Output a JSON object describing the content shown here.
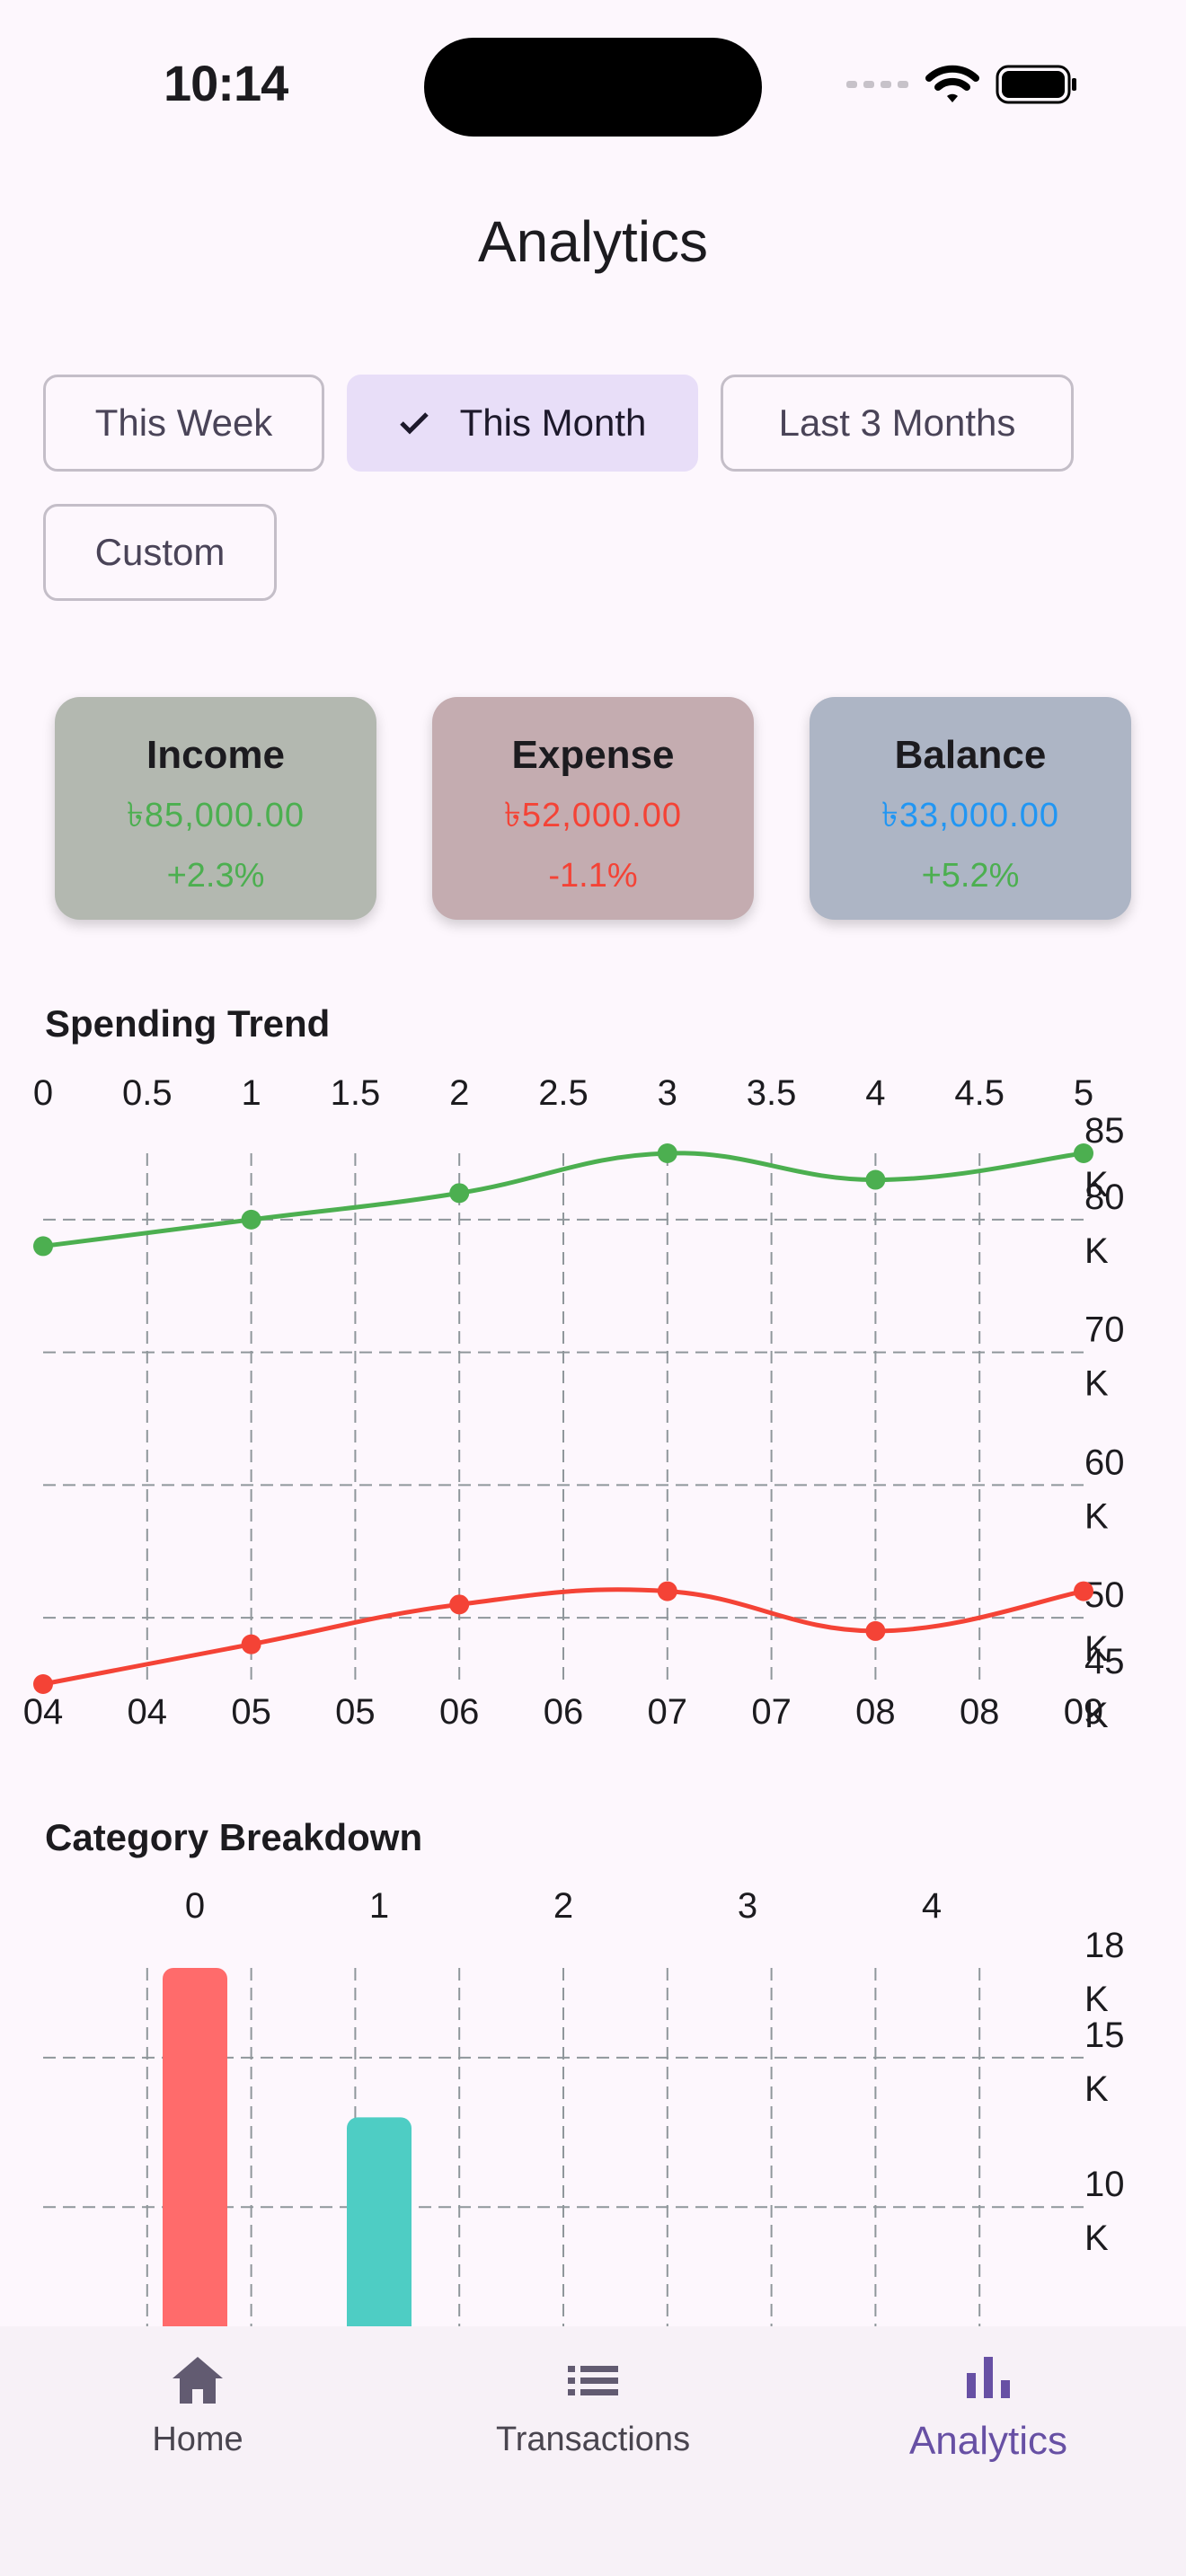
{
  "status_bar": {
    "time": "10:14"
  },
  "header": {
    "title": "Analytics"
  },
  "filters": [
    {
      "label": "This Week",
      "selected": false
    },
    {
      "label": "This Month",
      "selected": true
    },
    {
      "label": "Last 3 Months",
      "selected": false
    },
    {
      "label": "Custom",
      "selected": false
    }
  ],
  "summary": [
    {
      "label": "Income",
      "value": "৳85,000.00",
      "change": "+2.3%",
      "value_color": "#4caf50",
      "change_color": "#4caf50",
      "bg": "#b3b8b0"
    },
    {
      "label": "Expense",
      "value": "৳52,000.00",
      "change": "-1.1%",
      "value_color": "#f44336",
      "change_color": "#f44336",
      "bg": "#c4acb0"
    },
    {
      "label": "Balance",
      "value": "৳33,000.00",
      "change": "+5.2%",
      "value_color": "#2196f3",
      "change_color": "#4caf50",
      "bg": "#adb5c5"
    }
  ],
  "spending_trend": {
    "title": "Spending Trend"
  },
  "category_breakdown": {
    "title": "Category Breakdown"
  },
  "chart_data": [
    {
      "type": "line",
      "title": "Spending Trend",
      "x": [
        0,
        1,
        2,
        3,
        4,
        5
      ],
      "x_top_ticks": [
        "0",
        "0.5",
        "1",
        "1.5",
        "2",
        "2.5",
        "3",
        "3.5",
        "4",
        "4.5",
        "5"
      ],
      "x_bottom_ticks": [
        "04",
        "04",
        "05",
        "05",
        "06",
        "06",
        "07",
        "07",
        "08",
        "08",
        "09"
      ],
      "y_ticks": [
        {
          "v": 85000,
          "l1": "85",
          "l2": "K"
        },
        {
          "v": 80000,
          "l1": "80",
          "l2": "K"
        },
        {
          "v": 70000,
          "l1": "70",
          "l2": "K"
        },
        {
          "v": 60000,
          "l1": "60",
          "l2": "K"
        },
        {
          "v": 50000,
          "l1": "50",
          "l2": "K"
        },
        {
          "v": 45000,
          "l1": "45",
          "l2": "K"
        }
      ],
      "ylim": [
        45000,
        85000
      ],
      "series": [
        {
          "name": "Income",
          "color": "#4caf50",
          "values": [
            78000,
            80000,
            82000,
            85000,
            83000,
            85000
          ]
        },
        {
          "name": "Expense",
          "color": "#f44336",
          "values": [
            45000,
            48000,
            51000,
            52000,
            49000,
            52000
          ]
        }
      ]
    },
    {
      "type": "bar",
      "title": "Category Breakdown",
      "categories": [
        "0",
        "1",
        "2",
        "3",
        "4"
      ],
      "values": [
        18000,
        13000,
        0,
        0,
        0
      ],
      "colors": [
        "#ff6b6b",
        "#4ecdc4"
      ],
      "y_ticks": [
        {
          "v": 18000,
          "l1": "18",
          "l2": "K"
        },
        {
          "v": 15000,
          "l1": "15",
          "l2": "K"
        },
        {
          "v": 10000,
          "l1": "10",
          "l2": "K"
        }
      ]
    }
  ],
  "bottom_nav": [
    {
      "label": "Home",
      "icon": "home-icon",
      "active": false
    },
    {
      "label": "Transactions",
      "icon": "list-icon",
      "active": false
    },
    {
      "label": "Analytics",
      "icon": "bar-chart-icon",
      "active": true
    }
  ]
}
